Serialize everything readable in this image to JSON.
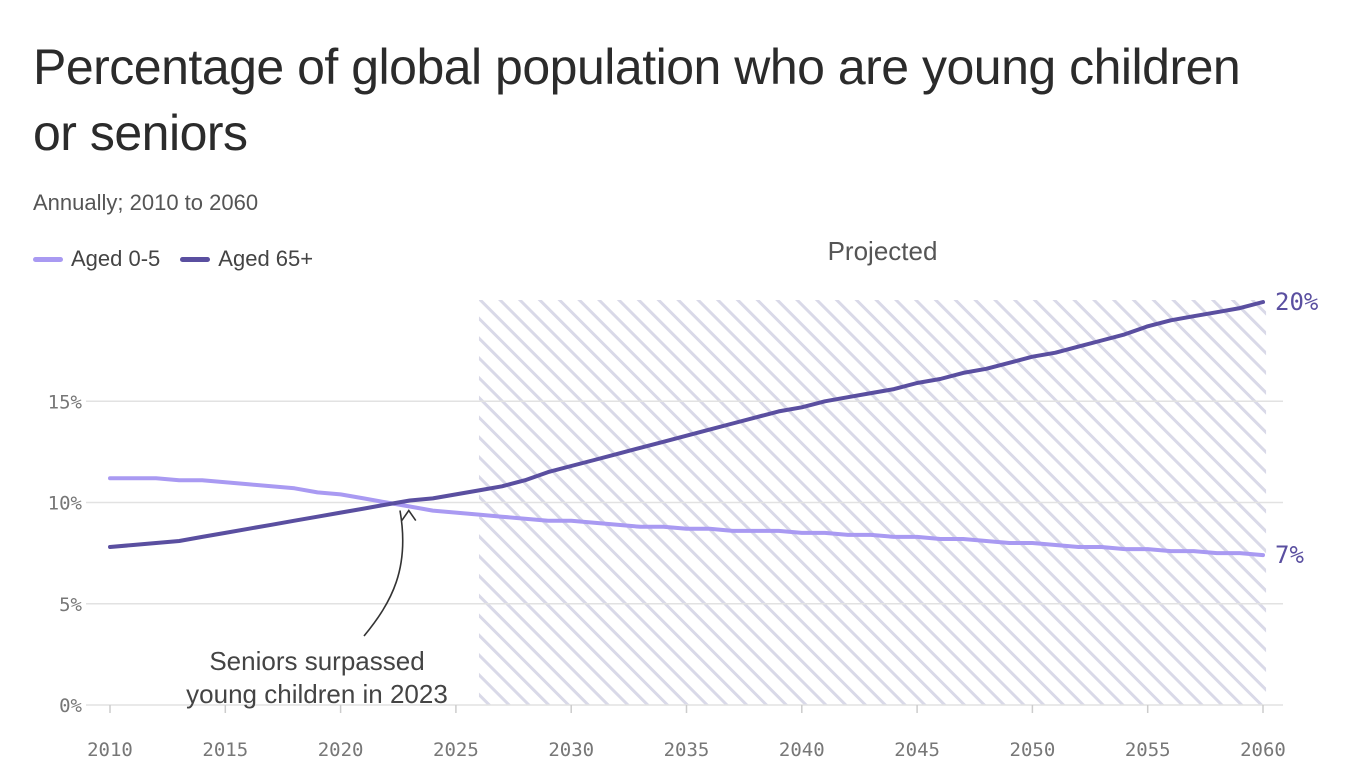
{
  "title": "Percentage of global population who are young children or seniors",
  "subtitle": "Annually; 2010 to 2060",
  "colors": {
    "aged_0_5": "#a99af2",
    "aged_65_plus": "#5a4fa0",
    "hatch": "#d9d9e8",
    "grid": "#e2e2e2"
  },
  "chart_data": {
    "type": "line",
    "title": "Percentage of global population who are young children or seniors",
    "subtitle": "Annually; 2010 to 2060",
    "xlabel": "",
    "ylabel": "",
    "xlim": [
      2010,
      2060
    ],
    "ylim": [
      0,
      20
    ],
    "x_ticks": [
      "2010",
      "2015",
      "2020",
      "2025",
      "2030",
      "2035",
      "2040",
      "2045",
      "2050",
      "2055",
      "2060"
    ],
    "y_ticks": [
      "0%",
      "5%",
      "10%",
      "15%"
    ],
    "grid": true,
    "legend_position": "top-left",
    "projected_region": {
      "label": "Projected",
      "from": 2026,
      "to": 2061
    },
    "series": [
      {
        "name": "Aged 0-5",
        "color": "#a99af2",
        "end_label": "7%",
        "x": [
          2010,
          2012,
          2013,
          2014,
          2016,
          2018,
          2019,
          2020,
          2021,
          2022,
          2023,
          2024,
          2025,
          2026,
          2027,
          2028,
          2029,
          2030,
          2031,
          2032,
          2033,
          2034,
          2035,
          2036,
          2037,
          2038,
          2039,
          2040,
          2041,
          2042,
          2043,
          2044,
          2045,
          2046,
          2047,
          2048,
          2049,
          2050,
          2051,
          2052,
          2053,
          2054,
          2055,
          2056,
          2057,
          2058,
          2059,
          2060
        ],
        "values": [
          11.2,
          11.2,
          11.1,
          11.1,
          10.9,
          10.7,
          10.5,
          10.4,
          10.2,
          10.0,
          9.8,
          9.6,
          9.5,
          9.4,
          9.3,
          9.2,
          9.1,
          9.1,
          9.0,
          8.9,
          8.8,
          8.8,
          8.7,
          8.7,
          8.6,
          8.6,
          8.6,
          8.5,
          8.5,
          8.4,
          8.4,
          8.3,
          8.3,
          8.2,
          8.2,
          8.1,
          8.0,
          8.0,
          7.9,
          7.8,
          7.8,
          7.7,
          7.7,
          7.6,
          7.6,
          7.5,
          7.5,
          7.4
        ]
      },
      {
        "name": "Aged 65+",
        "color": "#5a4fa0",
        "end_label": "20%",
        "x": [
          2010,
          2011,
          2012,
          2013,
          2014,
          2015,
          2016,
          2017,
          2018,
          2019,
          2020,
          2021,
          2022,
          2023,
          2024,
          2025,
          2026,
          2027,
          2028,
          2029,
          2030,
          2031,
          2032,
          2033,
          2034,
          2035,
          2036,
          2037,
          2038,
          2039,
          2040,
          2041,
          2042,
          2043,
          2044,
          2045,
          2046,
          2047,
          2048,
          2049,
          2050,
          2051,
          2052,
          2053,
          2054,
          2055,
          2056,
          2057,
          2058,
          2059,
          2060
        ],
        "values": [
          7.8,
          7.9,
          8.0,
          8.1,
          8.3,
          8.5,
          8.7,
          8.9,
          9.1,
          9.3,
          9.5,
          9.7,
          9.9,
          10.1,
          10.2,
          10.4,
          10.6,
          10.8,
          11.1,
          11.5,
          11.8,
          12.1,
          12.4,
          12.7,
          13.0,
          13.3,
          13.6,
          13.9,
          14.2,
          14.5,
          14.7,
          15.0,
          15.2,
          15.4,
          15.6,
          15.9,
          16.1,
          16.4,
          16.6,
          16.9,
          17.2,
          17.4,
          17.7,
          18.0,
          18.3,
          18.7,
          19.0,
          19.2,
          19.4,
          19.6,
          19.9
        ]
      }
    ],
    "annotations": [
      {
        "text_lines": [
          "Seniors surpassed",
          "young children in 2023"
        ],
        "x": 2023,
        "y": 9.9
      }
    ]
  }
}
